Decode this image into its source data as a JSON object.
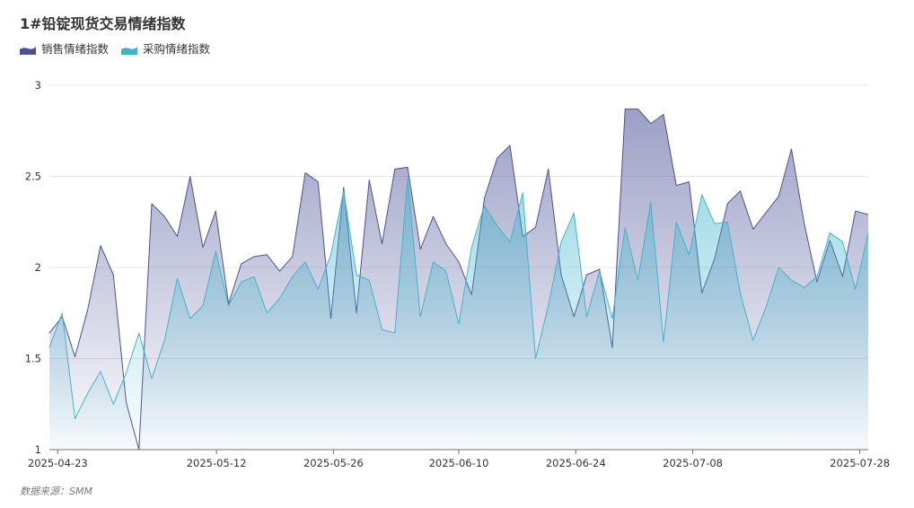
{
  "chart_data": {
    "type": "area",
    "title": "1#铅锭现货交易情绪指数",
    "xlabel": "",
    "ylabel": "",
    "ylim": [
      1,
      3
    ],
    "yticks": [
      "1",
      "1.5",
      "2",
      "2.5",
      "3"
    ],
    "ytick_values": [
      1,
      1.5,
      2,
      2.5,
      3
    ],
    "grid": true,
    "legend_position": "top-left",
    "x_tick_labels": [
      "2025-04-23",
      "2025-05-12",
      "2025-05-26",
      "2025-06-10",
      "2025-06-24",
      "2025-07-08",
      "2025-07-28"
    ],
    "x_tick_dates": [
      "2025-04-23",
      "2025-05-12",
      "2025-05-26",
      "2025-06-10",
      "2025-06-24",
      "2025-07-08",
      "2025-07-28"
    ],
    "x_start": "2025-04-22",
    "x_end": "2025-07-29",
    "series": [
      {
        "name": "销售情绪指数",
        "color": "#4a5196",
        "values": [
          1.64,
          1.73,
          1.51,
          1.77,
          2.12,
          1.96,
          1.26,
          1.0,
          2.35,
          2.28,
          2.17,
          2.5,
          2.11,
          2.31,
          1.8,
          2.02,
          2.06,
          2.07,
          1.98,
          2.06,
          2.52,
          2.47,
          1.72,
          2.44,
          1.75,
          2.48,
          2.13,
          2.54,
          2.55,
          2.1,
          2.28,
          2.13,
          2.03,
          1.85,
          2.38,
          2.6,
          2.67,
          2.17,
          2.22,
          2.54,
          1.96,
          1.73,
          1.96,
          1.99,
          1.56,
          2.87,
          2.87,
          2.79,
          2.84,
          2.45,
          2.47,
          1.86,
          2.05,
          2.35,
          2.42,
          2.21,
          2.3,
          2.39,
          2.65,
          2.24,
          1.92,
          2.15,
          1.95,
          2.31,
          2.29
        ]
      },
      {
        "name": "采购情绪指数",
        "color": "#41b4cb",
        "values": [
          1.56,
          1.75,
          1.17,
          1.31,
          1.43,
          1.25,
          1.42,
          1.64,
          1.39,
          1.6,
          1.94,
          1.72,
          1.79,
          2.09,
          1.79,
          1.92,
          1.95,
          1.75,
          1.83,
          1.95,
          2.03,
          1.88,
          2.07,
          2.42,
          1.96,
          1.93,
          1.66,
          1.64,
          2.49,
          1.73,
          2.03,
          1.98,
          1.69,
          2.11,
          2.34,
          2.23,
          2.14,
          2.41,
          1.5,
          1.79,
          2.14,
          2.3,
          1.73,
          1.98,
          1.72,
          2.22,
          1.93,
          2.36,
          1.59,
          2.25,
          2.07,
          2.4,
          2.24,
          2.25,
          1.86,
          1.6,
          1.78,
          2.0,
          1.93,
          1.89,
          1.95,
          2.19,
          2.14,
          1.88,
          2.19
        ]
      }
    ]
  },
  "source_label": "数据来源：SMM"
}
